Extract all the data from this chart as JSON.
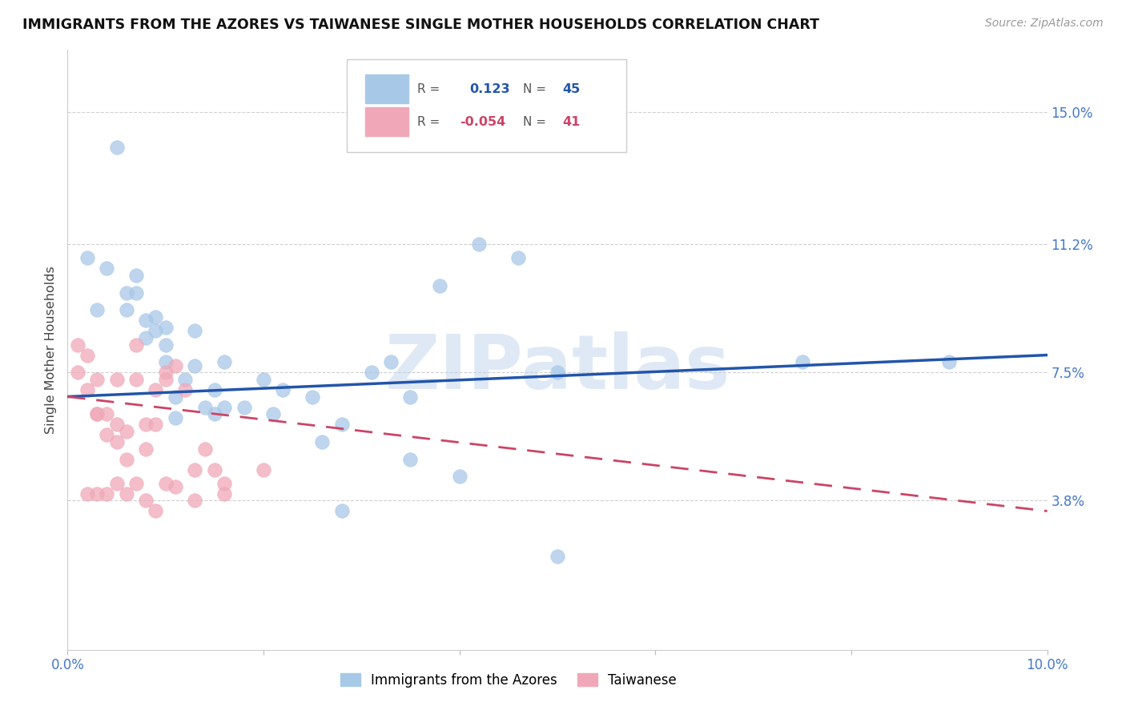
{
  "title": "IMMIGRANTS FROM THE AZORES VS TAIWANESE SINGLE MOTHER HOUSEHOLDS CORRELATION CHART",
  "source": "Source: ZipAtlas.com",
  "ylabel": "Single Mother Households",
  "legend_labels": [
    "Immigrants from the Azores",
    "Taiwanese"
  ],
  "r_blue": "0.123",
  "n_blue": "45",
  "r_pink": "-0.054",
  "n_pink": "41",
  "xlim": [
    0.0,
    0.1
  ],
  "ylim": [
    -0.005,
    0.168
  ],
  "yticks": [
    0.038,
    0.075,
    0.112,
    0.15
  ],
  "ytick_labels": [
    "3.8%",
    "7.5%",
    "11.2%",
    "15.0%"
  ],
  "xticks": [
    0.0,
    0.02,
    0.04,
    0.06,
    0.08,
    0.1
  ],
  "xtick_labels": [
    "0.0%",
    "",
    "",
    "",
    "",
    "10.0%"
  ],
  "blue_scatter_color": "#a8c8e8",
  "pink_scatter_color": "#f0a8b8",
  "blue_line_color": "#2255aa",
  "pink_line_color": "#cc4466",
  "axis_color": "#4477cc",
  "watermark": "ZIPatlas",
  "blue_x": [
    0.002,
    0.003,
    0.004,
    0.005,
    0.006,
    0.006,
    0.007,
    0.007,
    0.008,
    0.008,
    0.009,
    0.009,
    0.01,
    0.01,
    0.01,
    0.011,
    0.011,
    0.012,
    0.013,
    0.013,
    0.014,
    0.015,
    0.015,
    0.016,
    0.016,
    0.018,
    0.02,
    0.021,
    0.022,
    0.025,
    0.026,
    0.028,
    0.031,
    0.033,
    0.035,
    0.038,
    0.042,
    0.046,
    0.05,
    0.05,
    0.035,
    0.04,
    0.028,
    0.075,
    0.09
  ],
  "blue_y": [
    0.108,
    0.093,
    0.105,
    0.14,
    0.093,
    0.098,
    0.098,
    0.103,
    0.085,
    0.09,
    0.087,
    0.091,
    0.083,
    0.078,
    0.088,
    0.062,
    0.068,
    0.073,
    0.077,
    0.087,
    0.065,
    0.07,
    0.063,
    0.078,
    0.065,
    0.065,
    0.073,
    0.063,
    0.07,
    0.068,
    0.055,
    0.06,
    0.075,
    0.078,
    0.068,
    0.1,
    0.112,
    0.108,
    0.075,
    0.022,
    0.05,
    0.045,
    0.035,
    0.078,
    0.078
  ],
  "pink_x": [
    0.001,
    0.001,
    0.002,
    0.002,
    0.003,
    0.003,
    0.003,
    0.004,
    0.004,
    0.005,
    0.005,
    0.005,
    0.006,
    0.006,
    0.007,
    0.007,
    0.008,
    0.008,
    0.009,
    0.009,
    0.01,
    0.01,
    0.011,
    0.012,
    0.013,
    0.014,
    0.015,
    0.016,
    0.002,
    0.003,
    0.004,
    0.005,
    0.006,
    0.007,
    0.008,
    0.009,
    0.01,
    0.011,
    0.013,
    0.016,
    0.02
  ],
  "pink_y": [
    0.075,
    0.083,
    0.07,
    0.08,
    0.063,
    0.063,
    0.073,
    0.057,
    0.063,
    0.055,
    0.06,
    0.073,
    0.05,
    0.058,
    0.073,
    0.083,
    0.053,
    0.06,
    0.06,
    0.07,
    0.075,
    0.073,
    0.077,
    0.07,
    0.047,
    0.053,
    0.047,
    0.043,
    0.04,
    0.04,
    0.04,
    0.043,
    0.04,
    0.043,
    0.038,
    0.035,
    0.043,
    0.042,
    0.038,
    0.04,
    0.047
  ],
  "blue_trend_x": [
    0.0,
    0.1
  ],
  "blue_trend_y": [
    0.068,
    0.08
  ],
  "pink_trend_x": [
    0.0,
    0.1
  ],
  "pink_trend_y": [
    0.068,
    0.035
  ]
}
